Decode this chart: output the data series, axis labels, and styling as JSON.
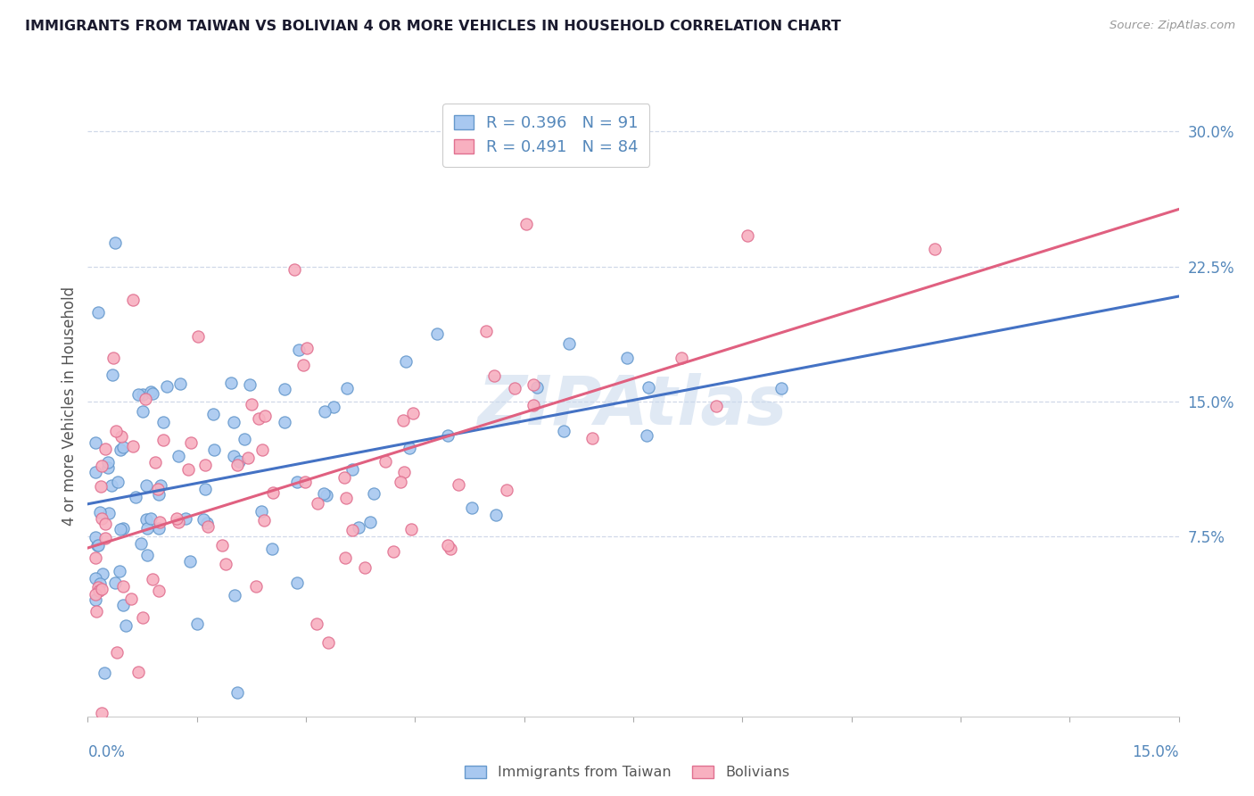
{
  "title": "IMMIGRANTS FROM TAIWAN VS BOLIVIAN 4 OR MORE VEHICLES IN HOUSEHOLD CORRELATION CHART",
  "source": "Source: ZipAtlas.com",
  "ylabel": "4 or more Vehicles in Household",
  "ylabel_ticks": [
    "7.5%",
    "15.0%",
    "22.5%",
    "30.0%"
  ],
  "ylabel_tick_vals": [
    0.075,
    0.15,
    0.225,
    0.3
  ],
  "xmin": 0.0,
  "xmax": 0.15,
  "ymin": -0.025,
  "ymax": 0.32,
  "taiwan_color": "#a8c8f0",
  "taiwan_edge": "#6699cc",
  "bolivian_color": "#f8b0c0",
  "bolivian_edge": "#e07090",
  "taiwan_line_color": "#4472c4",
  "bolivian_line_color": "#e06080",
  "taiwan_R": 0.396,
  "taiwan_N": 91,
  "bolivian_R": 0.491,
  "bolivian_N": 84,
  "taiwan_legend": "Immigrants from Taiwan",
  "bolivian_legend": "Bolivians",
  "background_color": "#ffffff",
  "grid_color": "#d0d8e8",
  "watermark": "ZIPAtlas",
  "label_color": "#5588bb"
}
